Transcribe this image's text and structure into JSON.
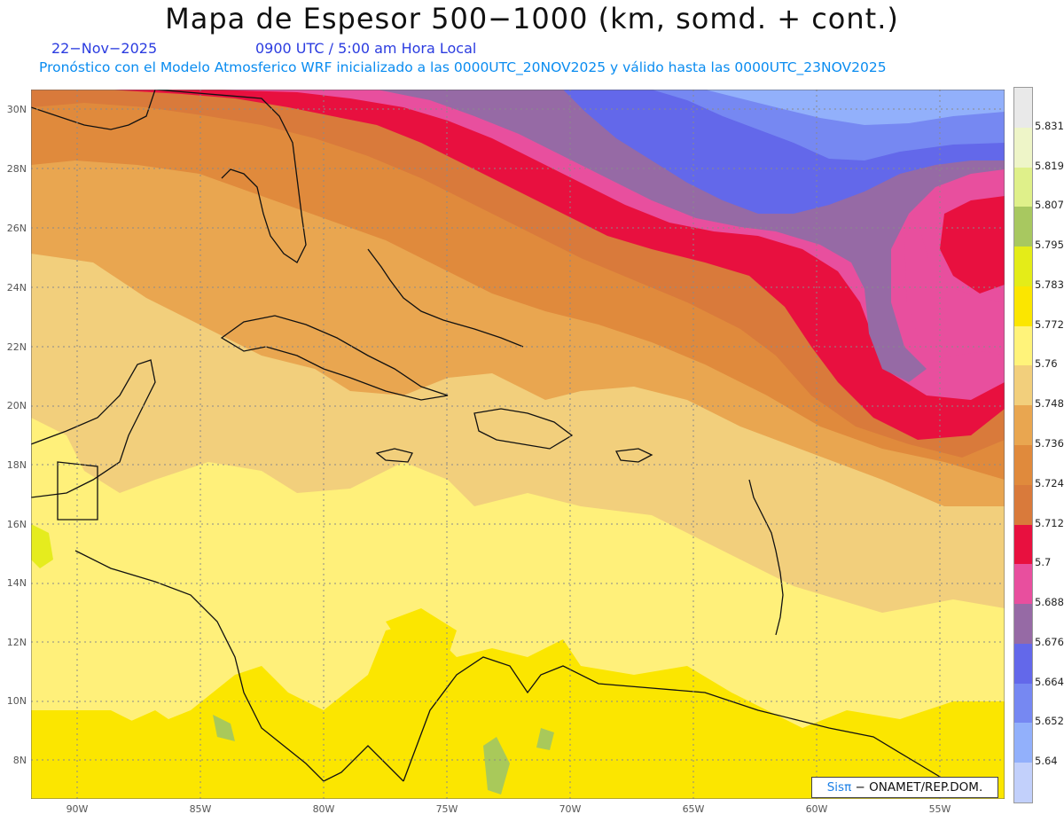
{
  "header": {
    "title": "Mapa de Espesor 500−1000 (km, somd. + cont.)",
    "date": "22−Nov−2025",
    "time": "0900 UTC / 5:00 am Hora Local",
    "model_info": "Pronóstico con el Modelo Atmosferico WRF inicializado a las 0000UTC_20NOV2025 y válido hasta las  0000UTC_23NOV2025"
  },
  "map": {
    "lat_labels": [
      "30N",
      "28N",
      "26N",
      "24N",
      "22N",
      "20N",
      "18N",
      "16N",
      "14N",
      "12N",
      "10N",
      "8N"
    ],
    "lon_labels": [
      "90W",
      "85W",
      "80W",
      "75W",
      "70W",
      "65W",
      "60W",
      "55W"
    ],
    "colors": {
      "ocean_low": "#fff07a",
      "band_5760": "#f2cf7c",
      "band_5748": "#e9a650",
      "band_5736": "#e08a3c",
      "band_5724": "#d97a3b",
      "band_5712": "#e8103f",
      "band_5700": "#e84f9e",
      "band_5688": "#966aa5",
      "band_5676": "#6368ea",
      "band_5664": "#7688f2",
      "band_5652": "#92b0fb",
      "lime": "#e5ec1e",
      "green": "#a9c95a"
    }
  },
  "legend": {
    "labels": [
      "5.831",
      "5.819",
      "5.807",
      "5.795",
      "5.783",
      "5.772",
      "5.76",
      "5.748",
      "5.736",
      "5.724",
      "5.712",
      "5.7",
      "5.688",
      "5.676",
      "5.664",
      "5.652",
      "5.64"
    ],
    "colors": [
      "#e9e9e9",
      "#eef5c8",
      "#dff08a",
      "#a8c860",
      "#e4ec18",
      "#fbe600",
      "#fff37a",
      "#f2cf7c",
      "#e9a650",
      "#e08a3c",
      "#d97a3b",
      "#e8103f",
      "#e84f9e",
      "#966aa5",
      "#6368ea",
      "#7688f2",
      "#92b0fb",
      "#c2d0fb"
    ]
  },
  "credit": {
    "brand": "Sisπ",
    "text": "− ONAMET/REP.DOM."
  }
}
